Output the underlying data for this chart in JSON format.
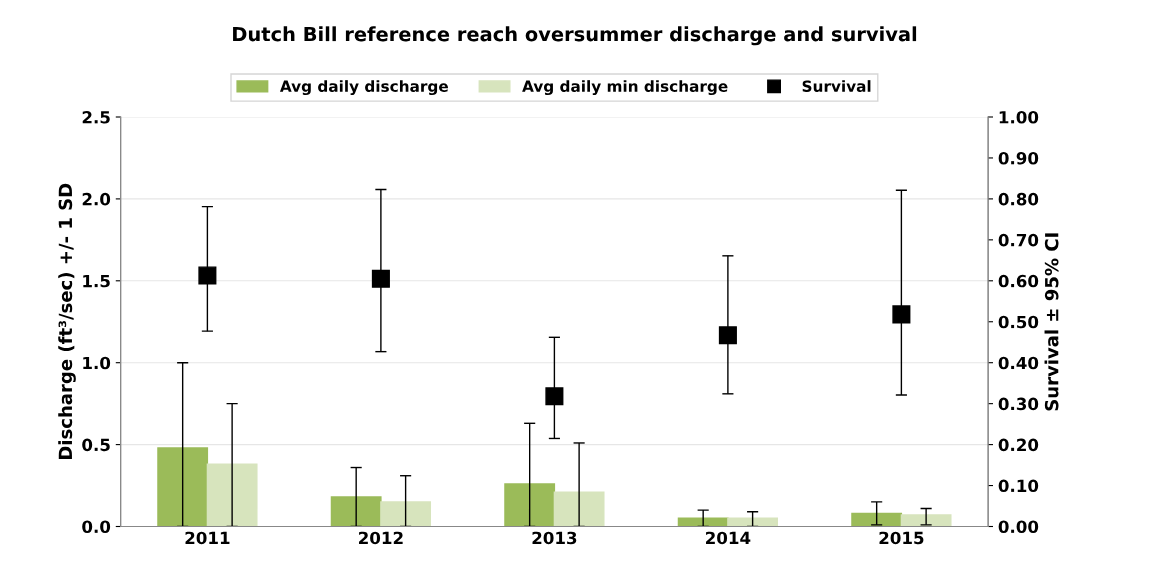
{
  "chart_data": {
    "type": "bar",
    "title": "Dutch Bill reference reach oversummer discharge and survival",
    "categories": [
      "2011",
      "2012",
      "2013",
      "2014",
      "2015"
    ],
    "ylabel": "Discharge (ft³/sec) +/- 1 SD",
    "y2label": "Survival ± 95% CI",
    "ylim": [
      0,
      2.5
    ],
    "yticks": [
      {
        "value": 0,
        "label": "0.0"
      },
      {
        "value": 0.5,
        "label": "0.5"
      },
      {
        "value": 1.0,
        "label": "1.0"
      },
      {
        "value": 1.5,
        "label": "1.5"
      },
      {
        "value": 2.0,
        "label": "2.0"
      },
      {
        "value": 2.5,
        "label": "2.5"
      }
    ],
    "y2lim": [
      0,
      1
    ],
    "y2ticks": [
      {
        "value": 0,
        "label": "0.00"
      },
      {
        "value": 0.1,
        "label": "0.10"
      },
      {
        "value": 0.2,
        "label": "0.20"
      },
      {
        "value": 0.3,
        "label": "0.30"
      },
      {
        "value": 0.4,
        "label": "0.40"
      },
      {
        "value": 0.5,
        "label": "0.50"
      },
      {
        "value": 0.6,
        "label": "0.60"
      },
      {
        "value": 0.7,
        "label": "0.70"
      },
      {
        "value": 0.8,
        "label": "0.80"
      },
      {
        "value": 0.9,
        "label": "0.90"
      },
      {
        "value": 1.0,
        "label": "1.00"
      }
    ],
    "grid": "y",
    "legend": "top",
    "series": [
      {
        "name": "Avg daily discharge",
        "color": "#9bbb59",
        "values": [
          0.48,
          0.18,
          0.26,
          0.05,
          0.08
        ],
        "errors": [
          [
            0,
            1.0
          ],
          [
            0,
            0.36
          ],
          [
            0,
            0.63
          ],
          [
            0,
            0.1
          ],
          [
            0.01,
            0.15
          ]
        ]
      },
      {
        "name": "Avg daily min discharge",
        "color": "#d7e4bd",
        "values": [
          0.38,
          0.15,
          0.21,
          0.05,
          0.07
        ],
        "errors": [
          [
            0,
            0.75
          ],
          [
            0,
            0.31
          ],
          [
            0,
            0.51
          ],
          [
            0,
            0.09
          ],
          [
            0.01,
            0.11
          ]
        ]
      },
      {
        "name": "Survival",
        "type": "scatter",
        "axis": "y2",
        "marker": "square",
        "color": "#000000",
        "values": [
          0.613,
          0.605,
          0.318,
          0.467,
          0.518
        ],
        "errors": [
          [
            0.477,
            0.781
          ],
          [
            0.427,
            0.823
          ],
          [
            0.215,
            0.462
          ],
          [
            0.324,
            0.661
          ],
          [
            0.321,
            0.821
          ]
        ]
      }
    ]
  }
}
